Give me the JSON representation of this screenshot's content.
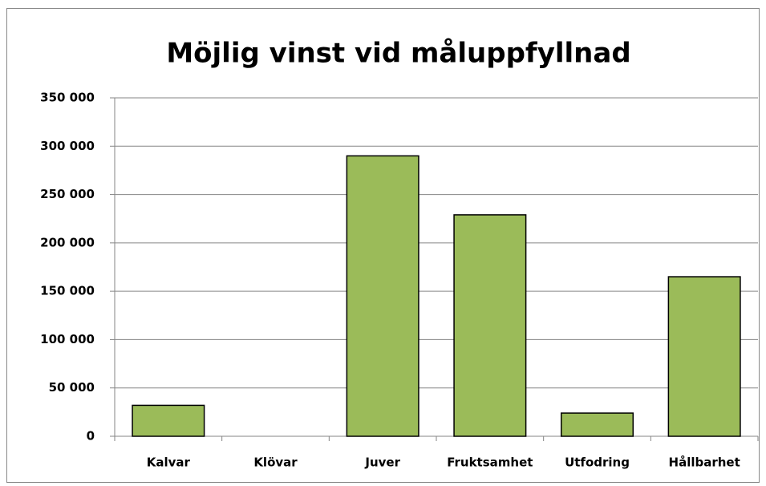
{
  "chart_data": {
    "type": "bar",
    "title": "Möjlig vinst vid måluppfyllnad",
    "categories": [
      "Kalvar",
      "Klövar",
      "Juver",
      "Fruktsamhet",
      "Utfodring",
      "Hållbarhet"
    ],
    "values": [
      32000,
      0,
      290000,
      229000,
      24000,
      165000
    ],
    "color": "#9bbb59",
    "ylim": [
      0,
      350000
    ],
    "yticks": [
      0,
      {
        "value": 50000,
        "label": "50 000"
      },
      {
        "value": 100000,
        "label": "100 000"
      },
      {
        "value": 150000,
        "label": "150 000"
      },
      {
        "value": 200000,
        "label": "200 000"
      },
      {
        "value": 250000,
        "label": "250 000"
      },
      {
        "value": 300000,
        "label": "300 000"
      },
      {
        "value": 350000,
        "label": "350 000"
      }
    ],
    "grid": true
  }
}
